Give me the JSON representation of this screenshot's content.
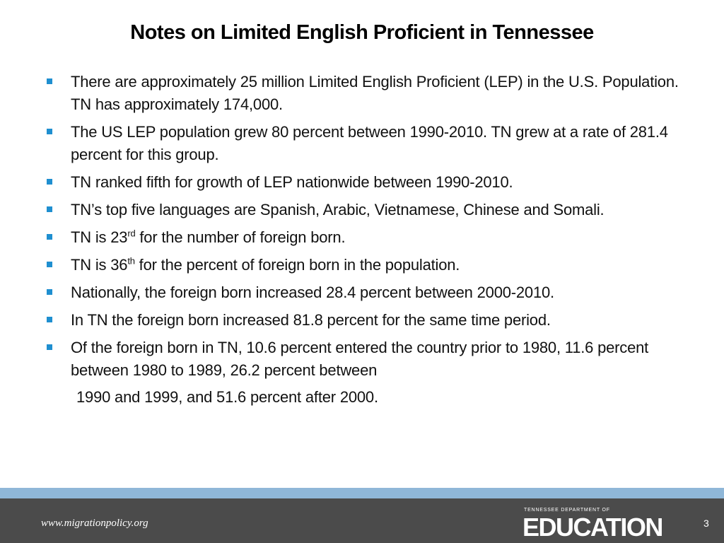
{
  "header": {
    "title": "Notes on Limited English Proficient in Tennessee"
  },
  "bullets": [
    "There are approximately 25 million Limited English Proficient (LEP) in the U.S. Population. TN has approximately 174,000.",
    "The US LEP population grew 80 percent between 1990-2010. TN grew at a rate of 281.4 percent for this group.",
    "TN ranked fifth for growth of LEP nationwide between 1990-2010.",
    "TN’s top five languages are Spanish, Arabic, Vietnamese, Chinese and Somali.",
    {
      "before": "TN is 23",
      "sup": "rd",
      "after": " for the number of foreign born."
    },
    {
      "before": "TN is 36",
      "sup": "th",
      "after": " for the percent of foreign born in the population."
    },
    "Nationally, the foreign born increased 28.4 percent between 2000-2010.",
    "In TN the foreign born increased 81.8 percent for the same time period.",
    {
      "text": "Of the foreign born in TN, 10.6 percent entered the country prior to 1980, 11.6 percent between 1980 to 1989, 26.2 percent between",
      "continuation": "1990 and 1999, and 51.6 percent after 2000."
    }
  ],
  "footer": {
    "website": "www.migrationpolicy.org",
    "logo_top": "TENNESSEE DEPARTMENT OF",
    "logo_main": "EDUCATION",
    "page_number": "3"
  }
}
